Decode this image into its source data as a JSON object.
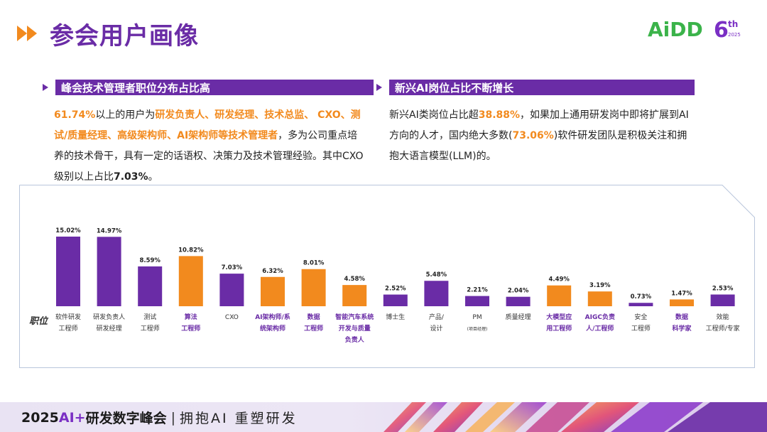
{
  "page": {
    "title": "参会用户画像",
    "logo_text": "AiDD",
    "logo_num": "6",
    "logo_sup": "th",
    "logo_year": "2025"
  },
  "left": {
    "header": "峰会技术管理者职位分布占比高",
    "p1": "61.74%",
    "p2": "以上的用户为",
    "p3": "研发负责人、研发经理、技术总监、 CXO、测试/质量经理、高级架构师、AI架构师等技术管理者",
    "p4": "，多为公司重点培养的技术骨干，具有一定的话语权、决策力及技术管理经验。其中CXO级别以上占比",
    "p5": "7.03%",
    "p6": "。"
  },
  "right": {
    "header": "新兴AI岗位占比不断增长",
    "p1": "新兴AI类岗位占比超",
    "p2": "38.88%",
    "p3": "，如果加上通用研发岗中即将扩展到AI方向的人才，国内绝大多数(",
    "p4": "73.06%",
    "p5": ")软件研发团队是积极关注和拥抱大语言模型(LLM)的。"
  },
  "chart_data": {
    "type": "bar",
    "row_label": "职位",
    "colors": {
      "default": "#6a2ca6",
      "highlight": "#f28a1e"
    },
    "categories": [
      {
        "label": [
          "软件研发",
          "工程师"
        ],
        "value": 15.02,
        "value_label": "15.02%",
        "highlight": false
      },
      {
        "label": [
          "研发负责人",
          "研发经理"
        ],
        "value": 14.97,
        "value_label": "14.97%",
        "highlight": false
      },
      {
        "label": [
          "测试",
          "工程师"
        ],
        "value": 8.59,
        "value_label": "8.59%",
        "highlight": false
      },
      {
        "label": [
          "算法",
          "工程师"
        ],
        "value": 10.82,
        "value_label": "10.82%",
        "highlight": true
      },
      {
        "label": [
          "CXO"
        ],
        "value": 7.03,
        "value_label": "7.03%",
        "highlight": false
      },
      {
        "label": [
          "AI架构师/系",
          "统架构师"
        ],
        "value": 6.32,
        "value_label": "6.32%",
        "highlight": true
      },
      {
        "label": [
          "数据",
          "工程师"
        ],
        "value": 8.01,
        "value_label": "8.01%",
        "highlight": true
      },
      {
        "label": [
          "智能汽车系统",
          "开发与质量",
          "负责人"
        ],
        "value": 4.58,
        "value_label": "4.58%",
        "highlight": true
      },
      {
        "label": [
          "博士生"
        ],
        "value": 2.52,
        "value_label": "2.52%",
        "highlight": false
      },
      {
        "label": [
          "产品/",
          "设计"
        ],
        "value": 5.48,
        "value_label": "5.48%",
        "highlight": false
      },
      {
        "label": [
          "PM",
          "(项目经理)"
        ],
        "value": 2.21,
        "value_label": "2.21%",
        "highlight": false
      },
      {
        "label": [
          "质量经理"
        ],
        "value": 2.04,
        "value_label": "2.04%",
        "highlight": false
      },
      {
        "label": [
          "大模型应",
          "用工程师"
        ],
        "value": 4.49,
        "value_label": "4.49%",
        "highlight": true
      },
      {
        "label": [
          "AIGC负责",
          "人/工程师"
        ],
        "value": 3.19,
        "value_label": "3.19%",
        "highlight": true
      },
      {
        "label": [
          "安全",
          "工程师"
        ],
        "value": 0.73,
        "value_label": "0.73%",
        "highlight": false
      },
      {
        "label": [
          "数据",
          "科学家"
        ],
        "value": 1.47,
        "value_label": "1.47%",
        "highlight": true
      },
      {
        "label": [
          "效能",
          "工程师/专家"
        ],
        "value": 2.53,
        "value_label": "2.53%",
        "highlight": false
      }
    ],
    "ylim": [
      0,
      15.02
    ]
  },
  "footer": {
    "year": "2025",
    "ai": "AI+",
    "name": "研发数字峰会",
    "sep": "|",
    "slogan": "拥抱AI 重塑研发"
  }
}
